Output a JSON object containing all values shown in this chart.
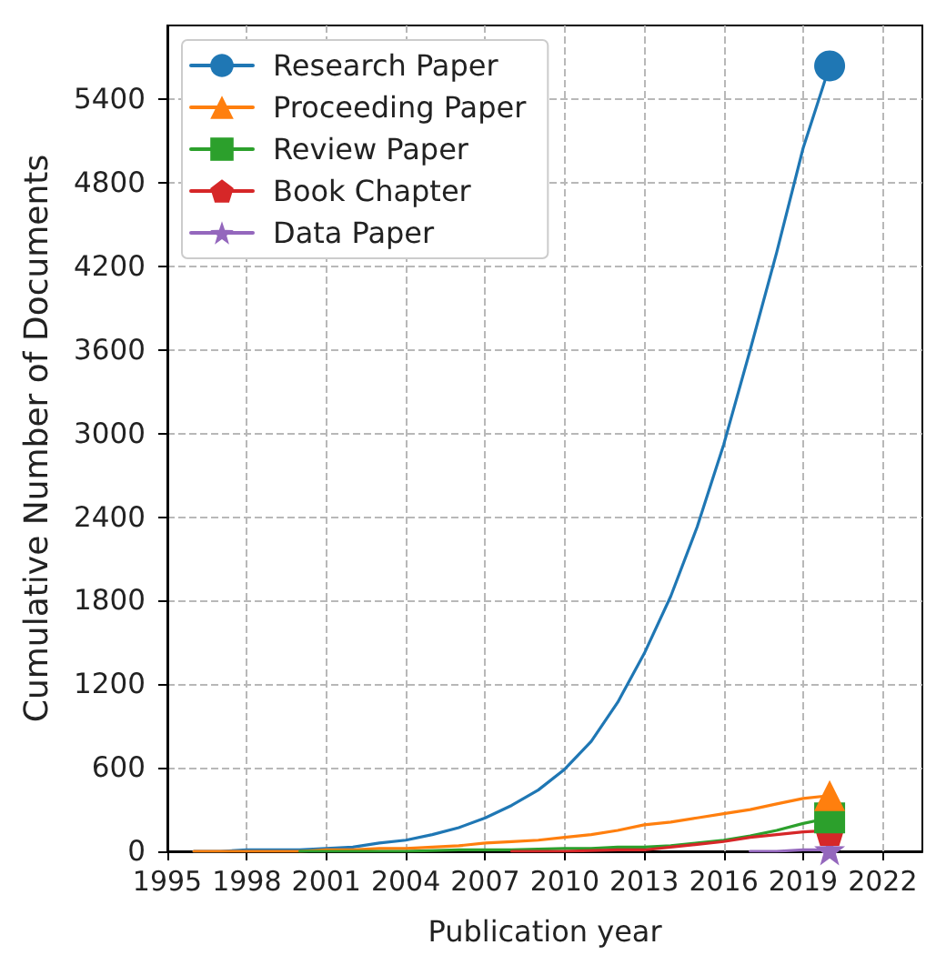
{
  "chart_data": {
    "type": "line",
    "xlabel": "Publication year",
    "ylabel": "Cumulative Number of Documents",
    "xlim": [
      1995,
      2023.5
    ],
    "xticks": [
      1995,
      1998,
      2001,
      2004,
      2007,
      2010,
      2013,
      2016,
      2019,
      2022
    ],
    "ylim": [
      0,
      5930
    ],
    "yticks": [
      0,
      600,
      1200,
      1800,
      2400,
      3000,
      3600,
      4200,
      4800,
      5400
    ],
    "grid": true,
    "legend": "top left",
    "line_style": "solid",
    "series": [
      {
        "name": "Research Paper",
        "color": "#1f77b4",
        "x": [
          1996,
          1997,
          1998,
          1999,
          2000,
          2001,
          2002,
          2003,
          2004,
          2005,
          2006,
          2007,
          2008,
          2009,
          2010,
          2011,
          2012,
          2013,
          2014,
          2015,
          2016,
          2017,
          2018,
          2019,
          2020
        ],
        "values": [
          0,
          0,
          10,
          10,
          10,
          20,
          30,
          60,
          80,
          120,
          170,
          240,
          330,
          440,
          590,
          790,
          1070,
          1420,
          1830,
          2330,
          2920,
          3600,
          4300,
          5050,
          5640
        ]
      },
      {
        "name": "Proceeding Paper",
        "color": "#ff7f0e",
        "x": [
          1996,
          1997,
          1998,
          1999,
          2000,
          2001,
          2002,
          2003,
          2004,
          2005,
          2006,
          2007,
          2008,
          2009,
          2010,
          2011,
          2012,
          2013,
          2014,
          2015,
          2016,
          2017,
          2018,
          2019,
          2020
        ],
        "values": [
          0,
          0,
          0,
          0,
          0,
          10,
          10,
          20,
          20,
          30,
          40,
          60,
          70,
          80,
          100,
          120,
          150,
          190,
          210,
          240,
          270,
          300,
          340,
          380,
          400
        ]
      },
      {
        "name": "Review Paper",
        "color": "#2ca02c",
        "x": [
          2000,
          2002,
          2004,
          2006,
          2008,
          2010,
          2011,
          2012,
          2013,
          2014,
          2015,
          2016,
          2017,
          2018,
          2019,
          2020
        ],
        "values": [
          0,
          0,
          0,
          10,
          10,
          20,
          20,
          30,
          30,
          40,
          60,
          80,
          110,
          150,
          200,
          240
        ]
      },
      {
        "name": "Book Chapter",
        "color": "#d62728",
        "x": [
          2008,
          2010,
          2012,
          2013,
          2014,
          2015,
          2016,
          2017,
          2018,
          2019,
          2020
        ],
        "values": [
          0,
          0,
          10,
          10,
          30,
          50,
          70,
          100,
          120,
          140,
          150
        ]
      },
      {
        "name": "Data Paper",
        "color": "#9467bd",
        "x": [
          2017,
          2018,
          2019,
          2020
        ],
        "values": [
          0,
          0,
          10,
          10
        ]
      },
      {
        "type": "scatter",
        "color": "#9467bd",
        "marker": "star",
        "x": [
          2020
        ],
        "values": [
          10
        ]
      },
      {
        "type": "scatter",
        "color": "#d62728",
        "x": [
          2020
        ],
        "values": [
          150
        ]
      },
      {
        "type": "scatter",
        "color": "#2ca02c",
        "marker": "square",
        "x": [
          2020
        ],
        "values": [
          240
        ]
      },
      {
        "type": "scatter",
        "color": "#ff7f0e",
        "marker": "triangle",
        "x": [
          2020
        ],
        "values": [
          400
        ]
      },
      {
        "type": "scatter",
        "color": "#1f77b4",
        "marker": "circle",
        "x": [
          2020
        ],
        "values": [
          5640
        ]
      }
    ]
  }
}
